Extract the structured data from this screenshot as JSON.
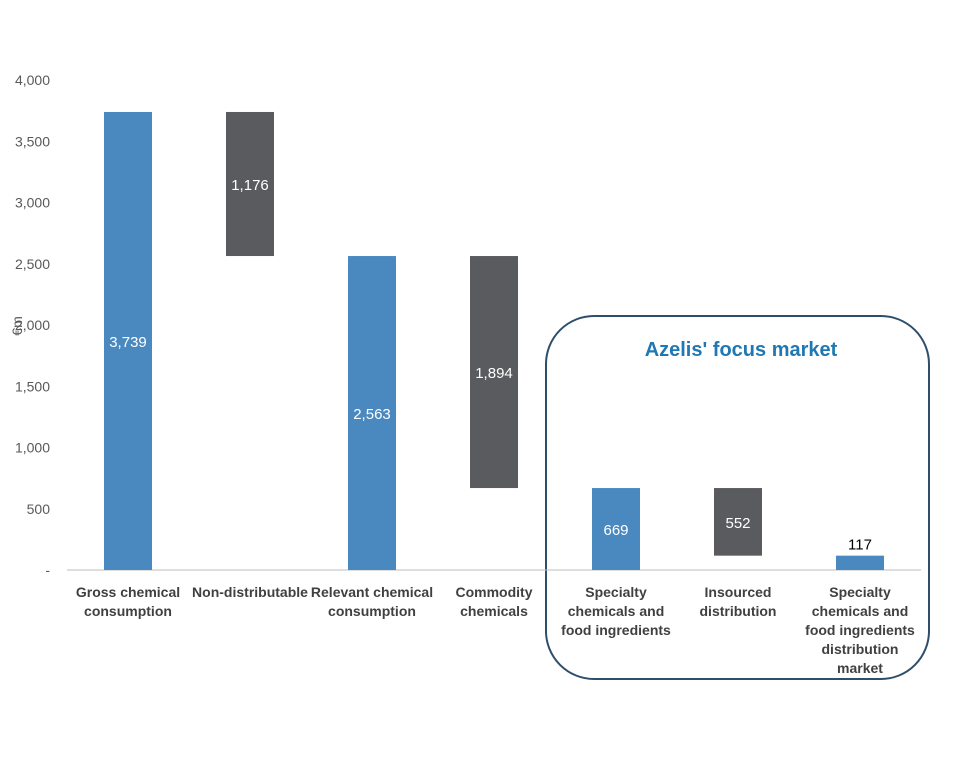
{
  "chart_data": {
    "type": "waterfall",
    "title": "",
    "xlabel": "",
    "ylabel": "€m",
    "ylim": [
      0,
      4000
    ],
    "yticks": [
      {
        "value": 0,
        "label": "-"
      },
      {
        "value": 500,
        "label": "500"
      },
      {
        "value": 1000,
        "label": "1,000"
      },
      {
        "value": 1500,
        "label": "1,500"
      },
      {
        "value": 2000,
        "label": "2,000"
      },
      {
        "value": 2500,
        "label": "2,500"
      },
      {
        "value": 3000,
        "label": "3,000"
      },
      {
        "value": 3500,
        "label": "3,500"
      },
      {
        "value": 4000,
        "label": "4,000"
      }
    ],
    "categories": [
      [
        "Gross chemical",
        "consumption"
      ],
      [
        "Non-distributable"
      ],
      [
        "Relevant chemical",
        "consumption"
      ],
      [
        "Commodity",
        "chemicals"
      ],
      [
        "Specialty",
        "chemicals and",
        "food ingredients"
      ],
      [
        "Insourced",
        "distribution"
      ],
      [
        "Specialty",
        "chemicals and",
        "food ingredients",
        "distribution",
        "market"
      ]
    ],
    "bars": [
      {
        "kind": "total",
        "base": 0,
        "value": 3739,
        "label": "3,739"
      },
      {
        "kind": "decrease",
        "base": 2563,
        "value": 1176,
        "label": "1,176"
      },
      {
        "kind": "total",
        "base": 0,
        "value": 2563,
        "label": "2,563"
      },
      {
        "kind": "decrease",
        "base": 669,
        "value": 1894,
        "label": "1,894"
      },
      {
        "kind": "total",
        "base": 0,
        "value": 669,
        "label": "669"
      },
      {
        "kind": "decrease",
        "base": 117,
        "value": 552,
        "label": "552"
      },
      {
        "kind": "total",
        "base": 0,
        "value": 117,
        "label": "117"
      }
    ],
    "colors": {
      "total": "#4a89c0",
      "decrease": "#5a5b5e",
      "axis": "#bfbfbf",
      "focus_border": "#2e4f6b",
      "focus_title": "#1f78b4"
    },
    "annotation": {
      "text": "Azelis' focus market",
      "covers_categories": [
        4,
        5,
        6
      ]
    }
  }
}
